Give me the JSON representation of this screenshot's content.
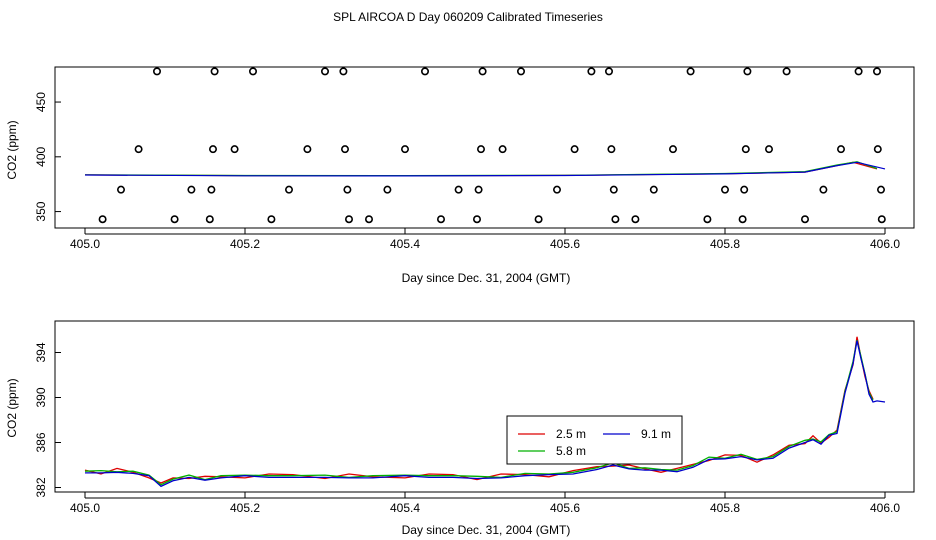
{
  "figure_title": "SPL AIRCOA D  Day 060209  Calibrated Timeseries",
  "chart_data": [
    {
      "type": "line",
      "xlabel": "Day since Dec. 31, 2004 (GMT)",
      "ylabel": "CO2 (ppm)",
      "xlim": [
        405.0,
        406.0
      ],
      "ylim": [
        335,
        482
      ],
      "xticks": [
        "405.0",
        "405.2",
        "405.4",
        "405.6",
        "405.8",
        "406.0"
      ],
      "yticks": [
        "350",
        "400",
        "450"
      ],
      "colors": {
        "red": "#dd0000",
        "green": "#00b000",
        "blue": "#0000cc"
      },
      "circles": {
        "y478": [
          405.09,
          405.162,
          405.21,
          405.3,
          405.323,
          405.425,
          405.497,
          405.545,
          405.633,
          405.655,
          405.757,
          405.828,
          405.877,
          405.967,
          405.99
        ],
        "y407": [
          405.067,
          405.16,
          405.187,
          405.278,
          405.325,
          405.4,
          405.495,
          405.522,
          405.612,
          405.658,
          405.735,
          405.826,
          405.855,
          405.945,
          405.991
        ],
        "y370": [
          405.045,
          405.133,
          405.158,
          405.255,
          405.328,
          405.378,
          405.467,
          405.492,
          405.59,
          405.661,
          405.711,
          405.8,
          405.824,
          405.923,
          405.995
        ],
        "y343": [
          405.022,
          405.112,
          405.156,
          405.233,
          405.33,
          405.355,
          405.445,
          405.49,
          405.567,
          405.663,
          405.688,
          405.778,
          405.822,
          405.9,
          405.996
        ]
      },
      "lines": [
        {
          "color": "red",
          "x": [
            405.0,
            405.2,
            405.4,
            405.6,
            405.8,
            405.9,
            405.94,
            405.96,
            405.99
          ],
          "y": [
            383.5,
            382.8,
            382.7,
            383.0,
            384.5,
            386.0,
            392.0,
            395.0,
            389.0
          ]
        },
        {
          "color": "green",
          "x": [
            405.0,
            405.2,
            405.4,
            405.6,
            405.8,
            405.9,
            405.94,
            405.965,
            405.99
          ],
          "y": [
            383.6,
            382.9,
            382.8,
            383.1,
            384.8,
            386.5,
            392.5,
            395.5,
            389.2
          ]
        },
        {
          "color": "blue",
          "x": [
            405.0,
            405.2,
            405.4,
            405.6,
            405.8,
            405.9,
            405.94,
            405.965,
            406.0
          ],
          "y": [
            383.4,
            382.7,
            382.6,
            382.9,
            384.4,
            386.0,
            392.0,
            395.0,
            389.0
          ]
        }
      ]
    },
    {
      "type": "line",
      "xlabel": "Day since Dec. 31, 2004 (GMT)",
      "ylabel": "CO2 (ppm)",
      "xlim": [
        405.0,
        406.0
      ],
      "ylim": [
        381.6,
        396.8
      ],
      "xticks": [
        "405.0",
        "405.2",
        "405.4",
        "405.6",
        "405.8",
        "406.0"
      ],
      "yticks": [
        "382",
        "386",
        "390",
        "394"
      ],
      "legend": {
        "position": "center-right",
        "entries": [
          {
            "label": "2.5 m",
            "color": "red"
          },
          {
            "label": "5.8 m",
            "color": "green"
          },
          {
            "label": "9.1 m",
            "color": "blue"
          }
        ]
      },
      "colors": {
        "red": "#dd0000",
        "green": "#00b000",
        "blue": "#0000cc"
      },
      "series_template": {
        "x": [
          405.0,
          405.02,
          405.04,
          405.06,
          405.08,
          405.095,
          405.11,
          405.13,
          405.15,
          405.17,
          405.2,
          405.23,
          405.26,
          405.3,
          405.33,
          405.36,
          405.4,
          405.43,
          405.46,
          405.49,
          405.52,
          405.55,
          405.58,
          405.61,
          405.64,
          405.66,
          405.68,
          405.7,
          405.72,
          405.74,
          405.76,
          405.78,
          405.8,
          405.82,
          405.84,
          405.86,
          405.88,
          405.9,
          405.91,
          405.92,
          405.93,
          405.94,
          405.95,
          405.96,
          405.965,
          405.97,
          405.975,
          405.98,
          405.985,
          405.99
        ],
        "y": [
          383.4,
          383.3,
          383.5,
          383.3,
          383.0,
          382.3,
          382.7,
          382.9,
          382.8,
          382.9,
          383.0,
          383.1,
          383.0,
          382.9,
          383.0,
          382.9,
          383.0,
          383.1,
          383.0,
          382.8,
          383.0,
          383.1,
          383.1,
          383.4,
          383.7,
          384.0,
          383.8,
          383.6,
          383.5,
          383.6,
          383.9,
          384.5,
          384.7,
          384.8,
          384.4,
          384.8,
          385.6,
          386.0,
          386.4,
          385.9,
          386.6,
          387.0,
          390.5,
          393.0,
          395.2,
          393.5,
          392.0,
          390.5,
          389.7,
          389.7
        ]
      },
      "series": [
        {
          "name": "2.5 m",
          "color": "red",
          "end_x": 405.985
        },
        {
          "name": "5.8 m",
          "color": "green",
          "end_x": 405.985
        },
        {
          "name": "9.1 m",
          "color": "blue",
          "end_x": 406.0
        }
      ]
    }
  ]
}
